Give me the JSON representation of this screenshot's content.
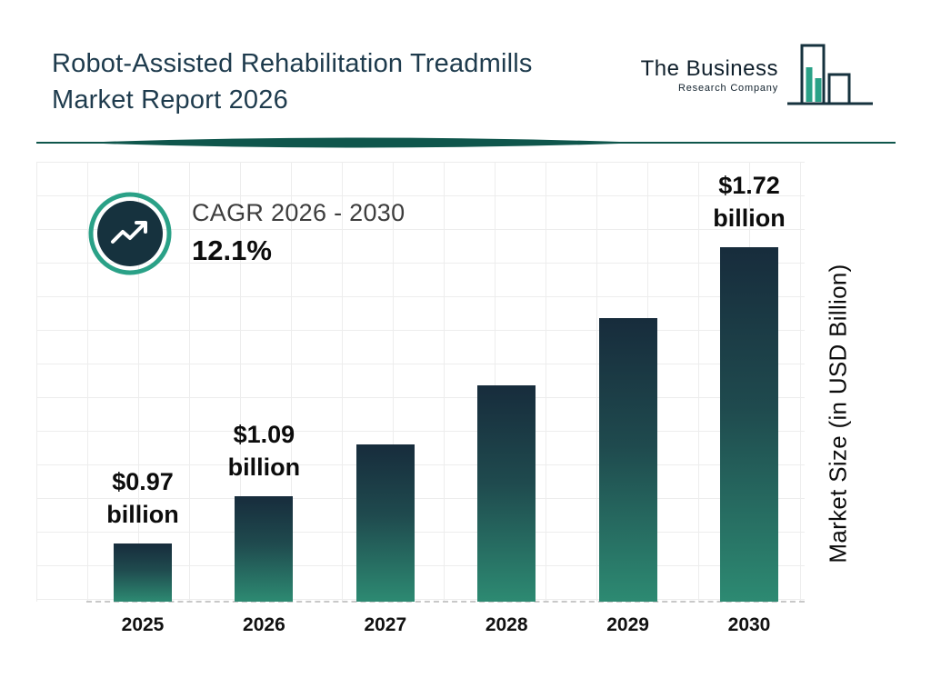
{
  "header": {
    "title_line1": "Robot-Assisted Rehabilitation Treadmills",
    "title_line2": "Market Report 2026",
    "logo": {
      "name_line1": "The Business",
      "name_line2": "Research Company",
      "icon": "bar-chart-logo-icon"
    }
  },
  "cagr": {
    "label": "CAGR 2026 - 2030",
    "value": "12.1%",
    "icon": "trending-up-icon"
  },
  "chart_data": {
    "type": "bar",
    "title": "Robot-Assisted Rehabilitation Treadmills Market Report 2026",
    "categories": [
      "2025",
      "2026",
      "2027",
      "2028",
      "2029",
      "2030"
    ],
    "values": [
      0.97,
      1.09,
      1.22,
      1.37,
      1.54,
      1.72
    ],
    "bar_labels": [
      "$0.97 billion",
      "$1.09 billion",
      null,
      null,
      null,
      "$1.72 billion"
    ],
    "xlabel": "",
    "ylabel": "Market Size (in USD Billion)",
    "unit": "USD Billion",
    "grid": true,
    "legend": false,
    "bar_gradient_top": "#172c3c",
    "bar_gradient_bottom": "#2d8a72"
  },
  "colors": {
    "title_text": "#1e3b4d",
    "accent_teal": "#2aa187",
    "dark_navy": "#16323e",
    "divider": "#0f564c",
    "grid_line": "#ededed"
  }
}
